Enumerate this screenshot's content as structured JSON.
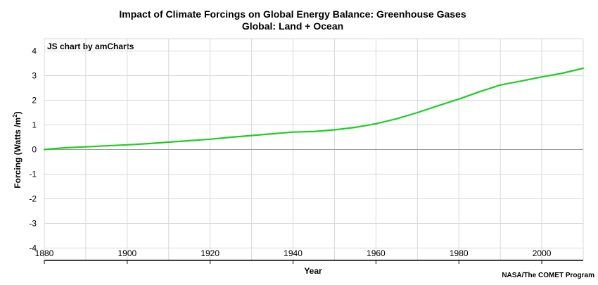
{
  "chart_data": {
    "type": "line",
    "title": "Impact of Climate Forcings on Global Energy Balance: Greenhouse Gases",
    "subtitle": "Global: Land + Ocean",
    "xlabel": "Year",
    "ylabel": "Forcing (Watts /m",
    "ylabel_superscript": "2",
    "ylabel_suffix": ")",
    "watermark": "JS chart by amCharts",
    "credit": "NASA/The COMET Program",
    "xlim": [
      1880,
      2010
    ],
    "ylim": [
      -4.5,
      4.5
    ],
    "x_ticks": [
      1880,
      1900,
      1920,
      1940,
      1960,
      1980,
      2000
    ],
    "x_tick_labels": [
      "1880",
      "1900",
      "1920",
      "1940",
      "1960",
      "1980",
      "2000"
    ],
    "y_ticks": [
      4,
      3,
      2,
      1,
      0,
      -1,
      -2,
      -3,
      -4
    ],
    "y_tick_labels": [
      "4",
      "3",
      "2",
      "1",
      "0",
      "-1",
      "-2",
      "-3",
      "-4"
    ],
    "grid": true,
    "legend": "none",
    "series": [
      {
        "color": "#22cc22",
        "x": [
          1880,
          1885,
          1890,
          1895,
          1900,
          1905,
          1910,
          1915,
          1920,
          1925,
          1930,
          1935,
          1940,
          1945,
          1950,
          1955,
          1960,
          1965,
          1970,
          1975,
          1980,
          1985,
          1990,
          1995,
          2000,
          2005,
          2010
        ],
        "values": [
          0.0,
          0.07,
          0.11,
          0.15,
          0.19,
          0.24,
          0.3,
          0.36,
          0.42,
          0.5,
          0.57,
          0.64,
          0.71,
          0.73,
          0.8,
          0.9,
          1.05,
          1.25,
          1.5,
          1.78,
          2.05,
          2.35,
          2.62,
          2.78,
          2.95,
          3.1,
          3.3
        ]
      }
    ]
  }
}
